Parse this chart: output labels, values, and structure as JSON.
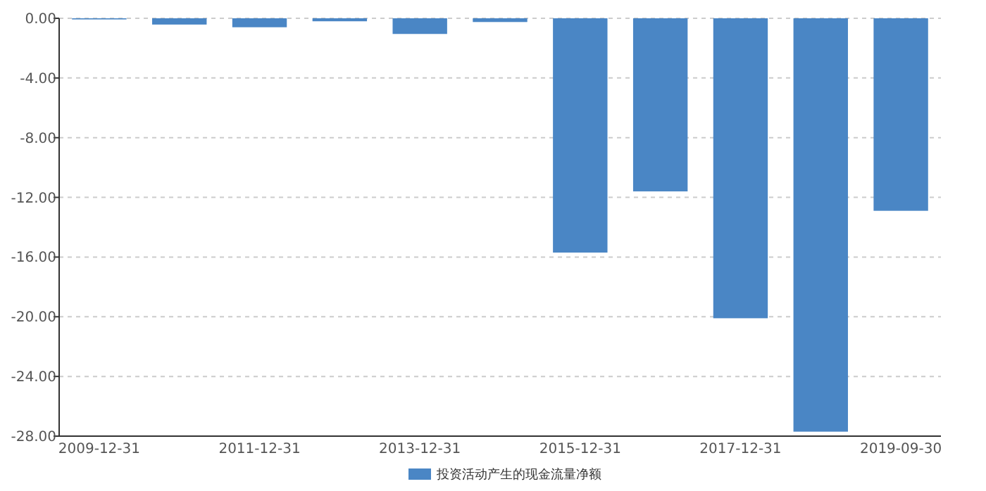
{
  "chart_data": {
    "type": "bar",
    "categories": [
      "2009-12-31",
      null,
      "2011-12-31",
      null,
      "2013-12-31",
      null,
      "2015-12-31",
      null,
      "2017-12-31",
      null,
      "2019-09-30"
    ],
    "series": [
      {
        "name": "投资活动产生的现金流量净额",
        "color": "#4a86c5",
        "values": [
          -0.05,
          -0.42,
          -0.6,
          -0.2,
          -1.05,
          -0.25,
          -15.7,
          -11.6,
          -20.1,
          -27.7,
          -12.9
        ]
      }
    ],
    "ylim": [
      -28,
      0
    ],
    "yticks": [
      {
        "value": 0,
        "label": "0.00"
      },
      {
        "value": -4,
        "label": "-4.00"
      },
      {
        "value": -8,
        "label": "-8.00"
      },
      {
        "value": -12,
        "label": "-12.00"
      },
      {
        "value": -16,
        "label": "-16.00"
      },
      {
        "value": -20,
        "label": "-20.00"
      },
      {
        "value": -24,
        "label": "-24.00"
      },
      {
        "value": -28,
        "label": "-28.00"
      }
    ],
    "grid": "y",
    "legend": "bottom"
  }
}
